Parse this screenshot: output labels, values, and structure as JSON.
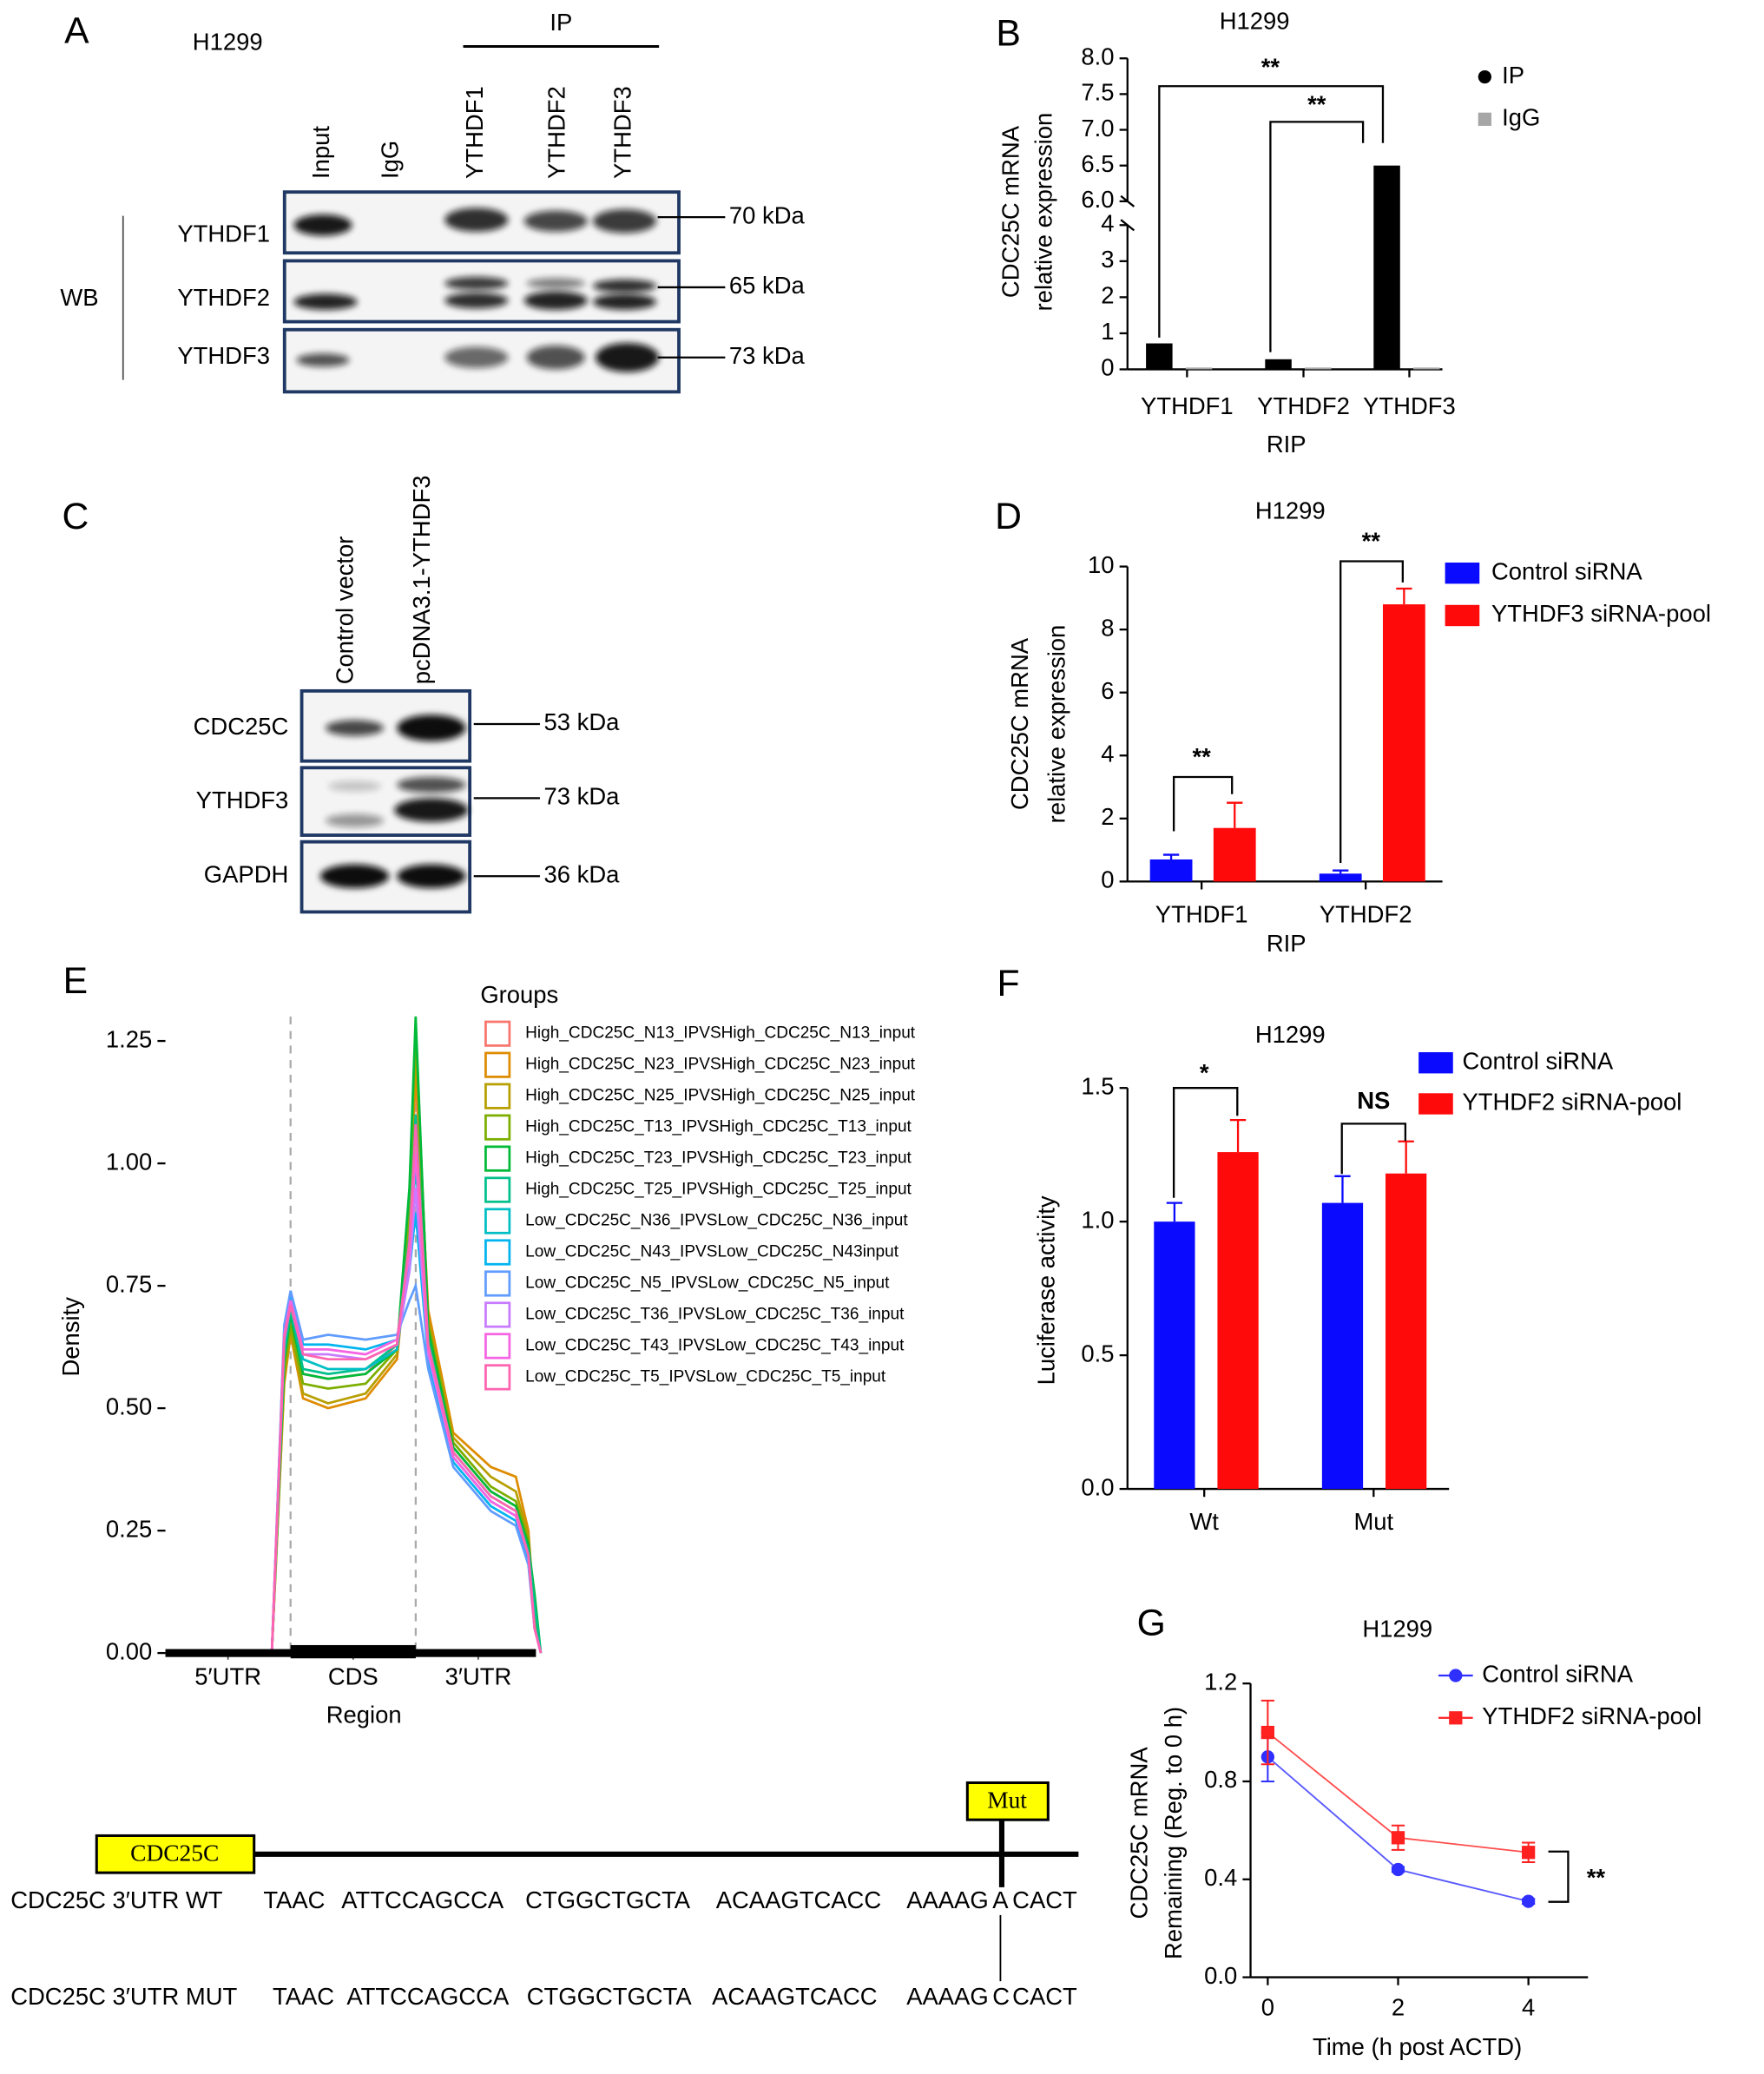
{
  "chart_data": [
    {
      "type": "bar",
      "panel": "B",
      "title": "H1299",
      "ylabel": [
        "CDC25C mRNA",
        "relative expression"
      ],
      "xlabel": "RIP",
      "categories": [
        "YTHDF1",
        "YTHDF2",
        "YTHDF3"
      ],
      "series": [
        {
          "name": "IP",
          "color": "#000000",
          "marker": "circle",
          "values": [
            0.72,
            0.28,
            6.5
          ]
        },
        {
          "name": "IgG",
          "color": "#a6a6a6",
          "marker": "square",
          "values": [
            0.05,
            0.05,
            0.05
          ]
        }
      ],
      "ylim": [
        0,
        8
      ],
      "ybreak": [
        4,
        6
      ],
      "yticks": [
        0,
        1,
        2,
        3,
        4,
        {
          "value": 6,
          "label": "6.0"
        },
        6.5,
        {
          "value": 7,
          "label": "7.0"
        },
        7.5,
        {
          "value": 8,
          "label": "8.0"
        }
      ],
      "annotations": [
        "**",
        "**"
      ]
    },
    {
      "type": "bar",
      "panel": "D",
      "title": "H1299",
      "ylabel": [
        "CDC25C mRNA",
        "relative expression"
      ],
      "xlabel": "RIP",
      "categories": [
        "YTHDF1",
        "YTHDF2"
      ],
      "series": [
        {
          "name": "Control siRNA",
          "color": "#0a0aff",
          "values": [
            0.7,
            0.25
          ],
          "errors": [
            0.15,
            0.1
          ]
        },
        {
          "name": "YTHDF3 siRNA-pool",
          "color": "#ff0a0a",
          "values": [
            1.7,
            8.8
          ],
          "errors": [
            0.8,
            0.5
          ]
        }
      ],
      "ylim": [
        0,
        10
      ],
      "yticks": [
        0,
        2,
        4,
        6,
        8,
        10
      ],
      "annotations": [
        "**",
        "**"
      ]
    },
    {
      "type": "density",
      "panel": "E",
      "ylabel": "Density",
      "xlabel": "Region",
      "legend_title": "Groups",
      "x": [
        0.85,
        0.95,
        1.0,
        1.1,
        1.3,
        1.6,
        1.85,
        1.95,
        2.0,
        2.1,
        2.3,
        2.6,
        2.8,
        2.9,
        2.95,
        3.0
      ],
      "xlim": [
        0,
        3.5
      ],
      "xticks": [
        {
          "value": 0.5,
          "label": "5′UTR"
        },
        {
          "value": 1.5,
          "label": "CDS"
        },
        {
          "value": 2.5,
          "label": "3′UTR"
        }
      ],
      "vlines": [
        1,
        2
      ],
      "ylim": [
        0,
        1.3
      ],
      "yticks": [
        {
          "value": 0,
          "label": "0.00"
        },
        0.25,
        {
          "value": 0.5,
          "label": "0.50"
        },
        0.75,
        {
          "value": 1,
          "label": "1.00"
        },
        1.25
      ],
      "series": [
        {
          "name": "High_CDC25C_N13_IPVSHigh_CDC25C_N13_input",
          "color": "#F8766D",
          "values": [
            0,
            0.6,
            0.68,
            0.57,
            0.56,
            0.57,
            0.63,
            0.88,
            1.18,
            0.66,
            0.42,
            0.33,
            0.3,
            0.22,
            0.06,
            0
          ]
        },
        {
          "name": "High_CDC25C_N23_IPVSHigh_CDC25C_N23_input",
          "color": "#DE8C00",
          "values": [
            0,
            0.55,
            0.65,
            0.52,
            0.5,
            0.52,
            0.6,
            0.85,
            1.2,
            0.7,
            0.45,
            0.38,
            0.36,
            0.25,
            0.07,
            0
          ]
        },
        {
          "name": "High_CDC25C_N25_IPVSHigh_CDC25C_N25_input",
          "color": "#B79F00",
          "values": [
            0,
            0.56,
            0.66,
            0.53,
            0.51,
            0.53,
            0.61,
            0.9,
            1.25,
            0.68,
            0.44,
            0.36,
            0.33,
            0.24,
            0.06,
            0
          ]
        },
        {
          "name": "High_CDC25C_T13_IPVSHigh_CDC25C_T13_input",
          "color": "#7CAE00",
          "values": [
            0,
            0.58,
            0.67,
            0.55,
            0.54,
            0.55,
            0.62,
            0.92,
            1.28,
            0.67,
            0.43,
            0.34,
            0.31,
            0.23,
            0.06,
            0
          ]
        },
        {
          "name": "High_CDC25C_T23_IPVSHigh_CDC25C_T23_input",
          "color": "#00BA38",
          "values": [
            0,
            0.6,
            0.69,
            0.57,
            0.56,
            0.57,
            0.62,
            0.95,
            1.3,
            0.66,
            0.42,
            0.33,
            0.3,
            0.22,
            0.12,
            0
          ]
        },
        {
          "name": "High_CDC25C_T25_IPVSHigh_CDC25C_T25_input",
          "color": "#00C08B",
          "values": [
            0,
            0.61,
            0.7,
            0.58,
            0.57,
            0.58,
            0.63,
            0.85,
            1.1,
            0.64,
            0.41,
            0.32,
            0.29,
            0.21,
            0.1,
            0
          ]
        },
        {
          "name": "Low_CDC25C_N36_IPVSLow_CDC25C_N36_input",
          "color": "#00BFC4",
          "values": [
            0,
            0.63,
            0.71,
            0.6,
            0.58,
            0.58,
            0.62,
            0.8,
            1.0,
            0.62,
            0.4,
            0.31,
            0.28,
            0.2,
            0.05,
            0
          ]
        },
        {
          "name": "Low_CDC25C_N43_IPVSLow_CDC25C_N43input",
          "color": "#00B4F0",
          "values": [
            0,
            0.66,
            0.73,
            0.63,
            0.63,
            0.62,
            0.64,
            0.78,
            0.9,
            0.6,
            0.39,
            0.3,
            0.27,
            0.19,
            0.05,
            0
          ]
        },
        {
          "name": "Low_CDC25C_N5_IPVSLow_CDC25C_N5_input",
          "color": "#619CFF",
          "values": [
            0,
            0.67,
            0.74,
            0.64,
            0.65,
            0.64,
            0.65,
            0.72,
            0.75,
            0.58,
            0.38,
            0.29,
            0.26,
            0.18,
            0.05,
            0
          ]
        },
        {
          "name": "Low_CDC25C_T36_IPVSLow_CDC25C_T36_input",
          "color": "#C77CFF",
          "values": [
            0,
            0.64,
            0.72,
            0.61,
            0.61,
            0.6,
            0.63,
            0.78,
            0.95,
            0.61,
            0.4,
            0.31,
            0.28,
            0.2,
            0.05,
            0
          ]
        },
        {
          "name": "Low_CDC25C_T43_IPVSLow_CDC25C_T43_input",
          "color": "#F564E3",
          "values": [
            0,
            0.65,
            0.72,
            0.62,
            0.62,
            0.61,
            0.64,
            0.82,
            1.02,
            0.62,
            0.4,
            0.31,
            0.28,
            0.2,
            0.05,
            0
          ]
        },
        {
          "name": "Low_CDC25C_T5_IPVSLow_CDC25C_T5_input",
          "color": "#FF64B0",
          "values": [
            0,
            0.64,
            0.71,
            0.61,
            0.6,
            0.6,
            0.63,
            0.84,
            1.08,
            0.63,
            0.41,
            0.32,
            0.29,
            0.2,
            0.05,
            0
          ]
        }
      ]
    },
    {
      "type": "bar",
      "panel": "F",
      "title": "H1299",
      "ylabel": "Luciferase activity",
      "categories": [
        "Wt",
        "Mut"
      ],
      "series": [
        {
          "name": "Control siRNA",
          "color": "#0a0aff",
          "values": [
            1.0,
            1.07
          ],
          "errors": [
            0.07,
            0.1
          ]
        },
        {
          "name": "YTHDF2 siRNA-pool",
          "color": "#ff0a0a",
          "values": [
            1.26,
            1.18
          ],
          "errors": [
            0.12,
            0.12
          ]
        }
      ],
      "ylim": [
        0,
        1.5
      ],
      "yticks": [
        {
          "value": 0,
          "label": "0.0"
        },
        0.5,
        {
          "value": 1,
          "label": "1.0"
        },
        1.5
      ],
      "annotations": [
        "*",
        "NS"
      ]
    },
    {
      "type": "line",
      "panel": "G",
      "title": "H1299",
      "ylabel": [
        "CDC25C mRNA",
        "Remaining (Reg. to 0 h)"
      ],
      "xlabel": "Time (h post ACTD)",
      "x": [
        0,
        2,
        4
      ],
      "xlim": [
        -0.264,
        4.914
      ],
      "xticks": [
        0,
        2,
        4
      ],
      "ylim": [
        0,
        1.2
      ],
      "yticks": [
        {
          "value": 0,
          "label": "0.0"
        },
        {
          "value": 0.4,
          "label": "0.4"
        },
        {
          "value": 0.8,
          "label": "0.8"
        },
        {
          "value": 1.2,
          "label": "1.2"
        }
      ],
      "series": [
        {
          "name": "Control siRNA",
          "color": "#2f2fff",
          "marker": "circle",
          "values": [
            0.9,
            0.44,
            0.31
          ],
          "errors": [
            0.1,
            0.01,
            0.01
          ]
        },
        {
          "name": "YTHDF2 siRNA-pool",
          "color": "#ff2020",
          "marker": "square",
          "values": [
            1.0,
            0.57,
            0.51
          ],
          "errors": [
            0.13,
            0.05,
            0.04
          ]
        }
      ],
      "annotations": [
        "**"
      ]
    }
  ],
  "blot_a": {
    "label": "A",
    "cell_line": "H1299",
    "ip_label": "IP",
    "lanes": [
      "Input",
      "IgG",
      "YTHDF1",
      "YTHDF2",
      "YTHDF3"
    ],
    "wb_label": "WB",
    "rows": [
      "YTHDF1",
      "YTHDF2",
      "YTHDF3"
    ],
    "sizes": [
      "70 kDa",
      "65 kDa",
      "73 kDa"
    ]
  },
  "blot_c": {
    "label": "C",
    "lanes": [
      "Control vector",
      "pcDNA3.1-YTHDF3"
    ],
    "rows": [
      "CDC25C",
      "YTHDF3",
      "GAPDH"
    ],
    "sizes": [
      "53 kDa",
      "73 kDa",
      "36 kDa"
    ]
  },
  "sequence": {
    "gene": "CDC25C",
    "mut_label": "Mut",
    "rows": [
      {
        "label": "CDC25C 3′UTR WT",
        "segments": [
          "TAAC",
          "ATTCCAGCCA",
          "CTGGCTGCTA",
          "ACAAGTCACC",
          "AAAAG",
          "A",
          "CACT"
        ]
      },
      {
        "label": "CDC25C 3′UTR MUT",
        "segments": [
          "TAAC",
          "ATTCCAGCCA",
          "CTGGCTGCTA",
          "ACAAGTCACC",
          "AAAAG",
          "C",
          "CACT"
        ]
      }
    ]
  }
}
